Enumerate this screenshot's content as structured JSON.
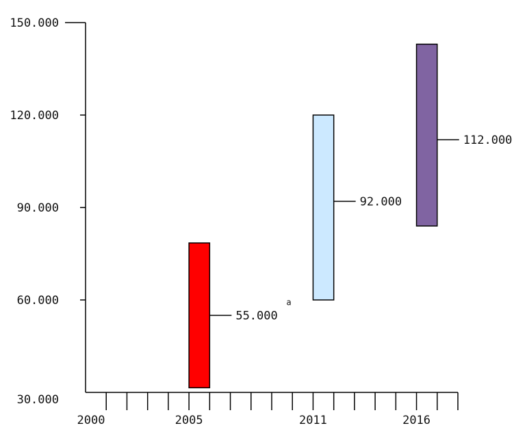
{
  "chart_data": {
    "type": "bar",
    "subtype": "floating-range",
    "title": "",
    "xlabel": "",
    "ylabel": "",
    "ylim": [
      30000,
      150000
    ],
    "xlim": [
      2000,
      2018
    ],
    "y_ticks": [
      "30.000",
      "60.000",
      "90.000",
      "120.000",
      "150.000"
    ],
    "y_tick_values": [
      30000,
      60000,
      90000,
      120000,
      150000
    ],
    "x_tick_labels": [
      "2000",
      "2005",
      "2011",
      "2016"
    ],
    "x_tick_values": [
      2000,
      2005,
      2011,
      2016
    ],
    "grid": false,
    "bars": [
      {
        "x": 2005,
        "low": 31500,
        "high": 78500,
        "value": 55000,
        "value_label": "55.000",
        "footnote": "a",
        "color": "#ff0000"
      },
      {
        "x": 2011,
        "low": 60000,
        "high": 120000,
        "value": 92000,
        "value_label": "92.000",
        "color": "#cce9ff"
      },
      {
        "x": 2016,
        "low": 84000,
        "high": 143000,
        "value": 112000,
        "value_label": "112.000",
        "color": "#8064a2"
      }
    ]
  }
}
